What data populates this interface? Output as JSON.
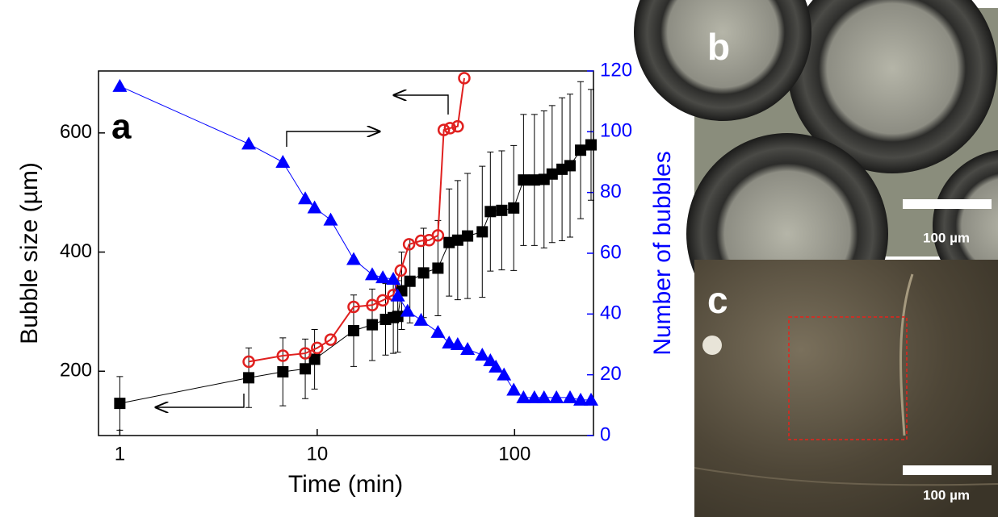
{
  "chart_data": {
    "type": "scatter",
    "panel_label": "a",
    "x_label": "Time (min)",
    "y_label": "Bubble size (µm)",
    "y2_label": "Number of bubbles",
    "xscale": "log",
    "xlim": [
      0.78,
      251
    ],
    "xticks": [
      1,
      10,
      100
    ],
    "ylim": [
      92,
      704
    ],
    "yticks": [
      200,
      400,
      600
    ],
    "y2lim": [
      0,
      120
    ],
    "y2ticks": [
      0,
      20,
      40,
      60,
      80,
      100,
      120
    ],
    "series": [
      {
        "color": "#000000",
        "marker": "square",
        "x": [
          1,
          4.5,
          6.7,
          8.7,
          9.7,
          15.3,
          19,
          22.2,
          24.3,
          25.6,
          26.8,
          29.5,
          34.6,
          40.9,
          46.6,
          51.5,
          57.8,
          68.6,
          75.4,
          86.1,
          99,
          111,
          126,
          141,
          155,
          174,
          191,
          216,
          244
        ],
        "values": [
          146,
          189,
          199,
          204,
          220,
          268,
          278,
          287,
          290,
          292,
          335,
          351,
          365,
          373,
          416,
          420,
          427,
          434,
          468,
          470,
          474,
          521,
          521,
          522,
          531,
          539,
          545,
          571,
          580
        ],
        "errors": [
          45,
          50,
          57,
          50,
          50,
          60,
          60,
          60,
          60,
          60,
          65,
          70,
          75,
          80,
          90,
          100,
          105,
          110,
          100,
          100,
          105,
          110,
          110,
          115,
          115,
          120,
          120,
          115,
          93
        ]
      },
      {
        "color": "#e0201f",
        "marker": "open-circle",
        "x": [
          4.5,
          6.7,
          8.7,
          10,
          11.7,
          15.3,
          19,
          21.5,
          24.3,
          26.5,
          29.2,
          33.6,
          36.9,
          40.9,
          43.8,
          47.1,
          51.5,
          55.6
        ],
        "values": [
          216,
          226,
          230,
          239,
          253,
          308,
          311,
          319,
          328,
          369,
          413,
          419,
          420,
          428,
          605,
          608,
          611,
          692
        ]
      },
      {
        "color": "#0000ff",
        "marker": "triangle",
        "axis": "y2",
        "x": [
          1,
          4.5,
          6.7,
          8.7,
          9.7,
          11.7,
          15.3,
          19,
          21.5,
          24.3,
          25.6,
          28.7,
          33.6,
          40.9,
          46.6,
          51.5,
          57.8,
          68.6,
          75.4,
          80.4,
          88.4,
          99,
          111,
          126,
          141,
          163,
          191,
          216,
          244
        ],
        "values": [
          115,
          96,
          90,
          78,
          75,
          71,
          58,
          53,
          52,
          51.5,
          46,
          41,
          38,
          34,
          30.5,
          30,
          28.4,
          26.5,
          24.7,
          22.6,
          20,
          15,
          12.5,
          12.5,
          12.5,
          12.5,
          12.5,
          11.7,
          11.7
        ]
      }
    ]
  },
  "images": [
    {
      "label": "b",
      "scale_bar": "100 µm"
    },
    {
      "label": "c",
      "scale_bar": "100 µm"
    }
  ]
}
